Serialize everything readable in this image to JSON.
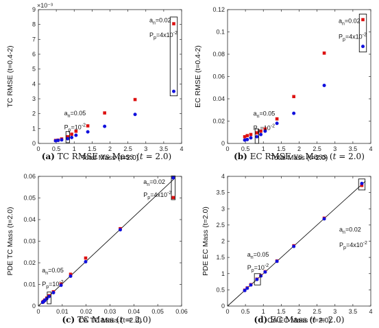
{
  "chart_data": [
    {
      "type": "scatter",
      "caption": {
        "label": "(a)",
        "title": "TC RMSE vs Mass",
        "cond": "(",
        "var": "t",
        "eq": " = 2.0)"
      },
      "xlabel": "Total Mass (t=2.0)",
      "ylabel": "TC RMSE (t=0.4-2)",
      "xlim": [
        0,
        4
      ],
      "ylim": [
        0,
        9
      ],
      "xticks": [
        "0",
        "0.5",
        "1",
        "1.5",
        "2",
        "2.5",
        "3",
        "3.5",
        "4"
      ],
      "yticks": [
        "0",
        "1",
        "2",
        "3",
        "4",
        "5",
        "6",
        "7",
        "8",
        "9"
      ],
      "exponent_label": "×10⁻³",
      "grid": false,
      "series": [
        {
          "color": "#dd1111",
          "marker": "square",
          "x": [
            0.48,
            0.55,
            0.65,
            0.82,
            0.93,
            1.05,
            1.38,
            1.85,
            2.7,
            3.78
          ],
          "y": [
            0.2,
            0.22,
            0.3,
            0.45,
            0.62,
            0.82,
            1.18,
            2.05,
            2.95,
            8.05
          ]
        },
        {
          "color": "#1111dd",
          "marker": "circle",
          "x": [
            0.48,
            0.55,
            0.65,
            0.82,
            0.93,
            1.05,
            1.38,
            1.85,
            2.7,
            3.78
          ],
          "y": [
            0.18,
            0.2,
            0.24,
            0.32,
            0.4,
            0.55,
            0.78,
            1.15,
            1.95,
            3.5
          ]
        }
      ],
      "boxes": [
        {
          "x0": 0.77,
          "x1": 0.87,
          "y0": 0.05,
          "y1": 0.8
        },
        {
          "x0": 3.68,
          "x1": 3.88,
          "y0": 3.2,
          "y1": 8.5
        }
      ],
      "annotations": [
        {
          "base": "a",
          "sub": "n",
          "rest": "=0.02",
          "x": 3.1,
          "y": 8.15
        },
        {
          "base": "P",
          "sub": "p",
          "rest": "=4x10",
          "sup": "-2",
          "x": 3.1,
          "y": 7.15
        },
        {
          "base": "a",
          "sub": "n",
          "rest": "=0.05",
          "x": 0.72,
          "y": 1.9
        },
        {
          "base": "P",
          "sub": "p",
          "rest": "=10",
          "sup": "-2",
          "x": 0.72,
          "y": 0.95
        }
      ]
    },
    {
      "type": "scatter",
      "caption": {
        "label": "(b)",
        "title": "EC RMSE vs Mass",
        "cond": "(",
        "var": "t",
        "eq": " = 2.0)"
      },
      "xlabel": "Total Mass (t=2.0)",
      "ylabel": "EC RMSE (t=0.4-2)",
      "xlim": [
        0,
        4
      ],
      "ylim": [
        0,
        0.12
      ],
      "xticks": [
        "0",
        "0.5",
        "1",
        "1.5",
        "2",
        "2.5",
        "3",
        "3.5",
        "4"
      ],
      "yticks": [
        "0",
        "0.02",
        "0.04",
        "0.06",
        "0.08",
        "0.1",
        "0.12"
      ],
      "grid": false,
      "series": [
        {
          "color": "#dd1111",
          "marker": "square",
          "x": [
            0.48,
            0.55,
            0.65,
            0.82,
            0.93,
            1.05,
            1.38,
            1.85,
            2.7,
            3.78
          ],
          "y": [
            0.006,
            0.007,
            0.008,
            0.0095,
            0.011,
            0.013,
            0.022,
            0.042,
            0.081,
            0.111
          ]
        },
        {
          "color": "#1111dd",
          "marker": "circle",
          "x": [
            0.48,
            0.55,
            0.65,
            0.82,
            0.93,
            1.05,
            1.38,
            1.85,
            2.7,
            3.78
          ],
          "y": [
            0.003,
            0.0035,
            0.005,
            0.006,
            0.008,
            0.011,
            0.018,
            0.027,
            0.052,
            0.087
          ]
        }
      ],
      "boxes": [
        {
          "x0": 0.77,
          "x1": 0.87,
          "y0": 0.0,
          "y1": 0.013
        },
        {
          "x0": 3.68,
          "x1": 3.88,
          "y0": 0.082,
          "y1": 0.116
        }
      ],
      "annotations": [
        {
          "base": "a",
          "sub": "n",
          "rest": "=0.02",
          "x": 3.1,
          "y": 0.108
        },
        {
          "base": "P",
          "sub": "p",
          "rest": "=4x10",
          "sup": "-2",
          "x": 3.1,
          "y": 0.094
        },
        {
          "base": "a",
          "sub": "n",
          "rest": "=0.05",
          "x": 0.72,
          "y": 0.025
        },
        {
          "base": "P",
          "sub": "p",
          "rest": "=10",
          "sup": "-2",
          "x": 0.72,
          "y": 0.012
        }
      ]
    },
    {
      "type": "scatter",
      "caption": {
        "label": "(c)",
        "title": "TC Mass",
        "cond": "(",
        "var": "t",
        "eq": " = 2.0)"
      },
      "xlabel": "CA TC Mass (t=2.0)",
      "ylabel": "PDE TC Mass (t=2.0)",
      "xlim": [
        0,
        0.06
      ],
      "ylim": [
        0,
        0.06
      ],
      "xticks": [
        "0",
        "0.01",
        "0.02",
        "0.03",
        "0.04",
        "0.05",
        "0.06"
      ],
      "yticks": [
        "0",
        "0.01",
        "0.02",
        "0.03",
        "0.04",
        "0.05",
        "0.06"
      ],
      "grid": false,
      "reference_line": {
        "x": [
          0,
          0.057
        ],
        "y": [
          0,
          0.059
        ]
      },
      "series": [
        {
          "color": "#dd1111",
          "marker": "square",
          "x": [
            0.0018,
            0.0022,
            0.0027,
            0.0035,
            0.0045,
            0.0063,
            0.0095,
            0.0135,
            0.0198,
            0.0343,
            0.0565
          ],
          "y": [
            0.0018,
            0.0022,
            0.0028,
            0.0037,
            0.0048,
            0.0066,
            0.0102,
            0.0147,
            0.0222,
            0.0358,
            0.0502
          ]
        },
        {
          "color": "#1111dd",
          "marker": "circle",
          "x": [
            0.0018,
            0.0022,
            0.0027,
            0.0035,
            0.0045,
            0.0063,
            0.0095,
            0.0135,
            0.0198,
            0.0343,
            0.0565
          ],
          "y": [
            0.0017,
            0.0021,
            0.0026,
            0.0034,
            0.0044,
            0.0062,
            0.0096,
            0.0138,
            0.0205,
            0.0353,
            0.0593
          ]
        }
      ],
      "boxes": [
        {
          "x0": 0.0037,
          "x1": 0.0053,
          "y0": 0.001,
          "y1": 0.0065
        },
        {
          "x0": 0.0557,
          "x1": 0.0573,
          "y0": 0.0492,
          "y1": 0.0602
        }
      ],
      "annotations": [
        {
          "base": "a",
          "sub": "n",
          "rest": "=0.02",
          "x": 0.044,
          "y": 0.0565
        },
        {
          "base": "P",
          "sub": "p",
          "rest": "=4x10",
          "sup": "-2",
          "x": 0.044,
          "y": 0.0505
        },
        {
          "base": "a",
          "sub": "n",
          "rest": "=0.05",
          "x": 0.0015,
          "y": 0.0155
        },
        {
          "base": "P",
          "sub": "p",
          "rest": "=10",
          "sup": "-2",
          "x": 0.0015,
          "y": 0.0092
        }
      ]
    },
    {
      "type": "scatter",
      "caption": {
        "label": "(d)",
        "title": "EC Mass",
        "cond": "(",
        "var": "t",
        "eq": " = 2.0)"
      },
      "xlabel": "CA EC Mass (t=2.0)",
      "ylabel": "PDE EC Mass (t=2.0)",
      "xlim": [
        0,
        4
      ],
      "ylim": [
        0,
        4
      ],
      "xticks": [
        "0",
        "0.5",
        "1",
        "1.5",
        "2",
        "2.5",
        "3",
        "3.5",
        "4"
      ],
      "yticks": [
        "0",
        "0.5",
        "1",
        "1.5",
        "2",
        "2.5",
        "3",
        "3.5",
        "4"
      ],
      "grid": false,
      "reference_line": {
        "x": [
          0,
          3.85
        ],
        "y": [
          0,
          3.85
        ]
      },
      "series": [
        {
          "color": "#dd1111",
          "marker": "square",
          "x": [
            0.48,
            0.55,
            0.65,
            0.82,
            0.93,
            1.05,
            1.38,
            1.85,
            2.7,
            3.75
          ],
          "y": [
            0.49,
            0.56,
            0.66,
            0.83,
            0.94,
            1.06,
            1.39,
            1.86,
            2.71,
            3.72
          ]
        },
        {
          "color": "#1111dd",
          "marker": "circle",
          "x": [
            0.48,
            0.55,
            0.65,
            0.82,
            0.93,
            1.05,
            1.38,
            1.85,
            2.7,
            3.75
          ],
          "y": [
            0.48,
            0.55,
            0.65,
            0.82,
            0.93,
            1.05,
            1.38,
            1.84,
            2.69,
            3.78
          ]
        }
      ],
      "boxes": [
        {
          "x0": 0.75,
          "x1": 0.92,
          "y0": 0.65,
          "y1": 1.0
        },
        {
          "x0": 3.66,
          "x1": 3.84,
          "y0": 3.58,
          "y1": 3.92
        }
      ],
      "annotations": [
        {
          "base": "a",
          "sub": "n",
          "rest": "=0.02",
          "x": 3.12,
          "y": 2.3
        },
        {
          "base": "P",
          "sub": "p",
          "rest": "=4x10",
          "sup": "-2",
          "x": 3.12,
          "y": 1.82
        },
        {
          "base": "a",
          "sub": "n",
          "rest": "=0.05",
          "x": 0.55,
          "y": 1.52
        },
        {
          "base": "P",
          "sub": "p",
          "rest": "=10",
          "sup": "-2",
          "x": 0.55,
          "y": 1.12
        }
      ]
    }
  ]
}
